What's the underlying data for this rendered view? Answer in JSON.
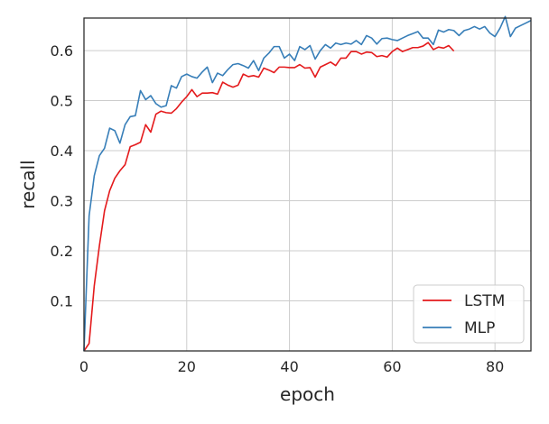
{
  "chart_data": {
    "type": "line",
    "title": "",
    "xlabel": "epoch",
    "ylabel": "recall",
    "xlim": [
      0,
      87
    ],
    "ylim": [
      0.0,
      0.665
    ],
    "xticks": [
      0,
      20,
      40,
      60,
      80
    ],
    "yticks": [
      0.1,
      0.2,
      0.3,
      0.4,
      0.5,
      0.6
    ],
    "grid": true,
    "legend_position": "bottom-right",
    "series": [
      {
        "name": "LSTM",
        "color": "#e41a1c",
        "x": [
          0,
          1,
          2,
          3,
          4,
          5,
          6,
          7,
          8,
          9,
          10,
          11,
          12,
          13,
          14,
          15,
          16,
          17,
          18,
          19,
          20,
          21,
          22,
          23,
          24,
          25,
          26,
          27,
          28,
          29,
          30,
          31,
          32,
          33,
          34,
          35,
          36,
          37,
          38,
          39,
          40,
          41,
          42,
          43,
          44,
          45,
          46,
          47,
          48,
          49,
          50,
          51,
          52,
          53,
          54,
          55,
          56,
          57,
          58,
          59,
          60,
          61,
          62,
          63,
          64,
          65,
          66,
          67,
          68,
          69,
          70,
          71,
          72
        ],
        "y": [
          0.0,
          0.015,
          0.13,
          0.21,
          0.28,
          0.32,
          0.345,
          0.36,
          0.372,
          0.408,
          0.412,
          0.417,
          0.452,
          0.437,
          0.473,
          0.479,
          0.476,
          0.475,
          0.484,
          0.497,
          0.508,
          0.522,
          0.508,
          0.515,
          0.515,
          0.516,
          0.513,
          0.537,
          0.531,
          0.527,
          0.531,
          0.553,
          0.548,
          0.55,
          0.547,
          0.565,
          0.561,
          0.556,
          0.567,
          0.567,
          0.566,
          0.566,
          0.572,
          0.565,
          0.566,
          0.547,
          0.567,
          0.572,
          0.577,
          0.57,
          0.585,
          0.585,
          0.598,
          0.598,
          0.593,
          0.597,
          0.596,
          0.588,
          0.59,
          0.587,
          0.598,
          0.605,
          0.598,
          0.602,
          0.606,
          0.606,
          0.609,
          0.616,
          0.602,
          0.607,
          0.605,
          0.61,
          0.599
        ]
      },
      {
        "name": "MLP",
        "color": "#377eb8",
        "x": [
          0,
          1,
          2,
          3,
          4,
          5,
          6,
          7,
          8,
          9,
          10,
          11,
          12,
          13,
          14,
          15,
          16,
          17,
          18,
          19,
          20,
          21,
          22,
          23,
          24,
          25,
          26,
          27,
          28,
          29,
          30,
          31,
          32,
          33,
          34,
          35,
          36,
          37,
          38,
          39,
          40,
          41,
          42,
          43,
          44,
          45,
          46,
          47,
          48,
          49,
          50,
          51,
          52,
          53,
          54,
          55,
          56,
          57,
          58,
          59,
          60,
          61,
          62,
          63,
          64,
          65,
          66,
          67,
          68,
          69,
          70,
          71,
          72,
          73,
          74,
          75,
          76,
          77,
          78,
          79,
          80,
          81,
          82,
          83,
          84,
          85,
          86,
          87
        ],
        "y": [
          0.0,
          0.27,
          0.35,
          0.39,
          0.405,
          0.445,
          0.44,
          0.415,
          0.452,
          0.468,
          0.47,
          0.52,
          0.502,
          0.51,
          0.494,
          0.487,
          0.49,
          0.53,
          0.525,
          0.548,
          0.553,
          0.548,
          0.545,
          0.557,
          0.567,
          0.536,
          0.555,
          0.55,
          0.562,
          0.572,
          0.574,
          0.57,
          0.565,
          0.58,
          0.56,
          0.585,
          0.595,
          0.608,
          0.608,
          0.585,
          0.593,
          0.58,
          0.608,
          0.602,
          0.61,
          0.583,
          0.6,
          0.612,
          0.605,
          0.615,
          0.612,
          0.615,
          0.613,
          0.62,
          0.612,
          0.63,
          0.625,
          0.613,
          0.624,
          0.625,
          0.622,
          0.62,
          0.625,
          0.63,
          0.634,
          0.638,
          0.625,
          0.625,
          0.612,
          0.641,
          0.637,
          0.642,
          0.64,
          0.63,
          0.64,
          0.643,
          0.648,
          0.643,
          0.648,
          0.635,
          0.628,
          0.645,
          0.668,
          0.628,
          0.645,
          0.65,
          0.655,
          0.66
        ]
      }
    ]
  }
}
